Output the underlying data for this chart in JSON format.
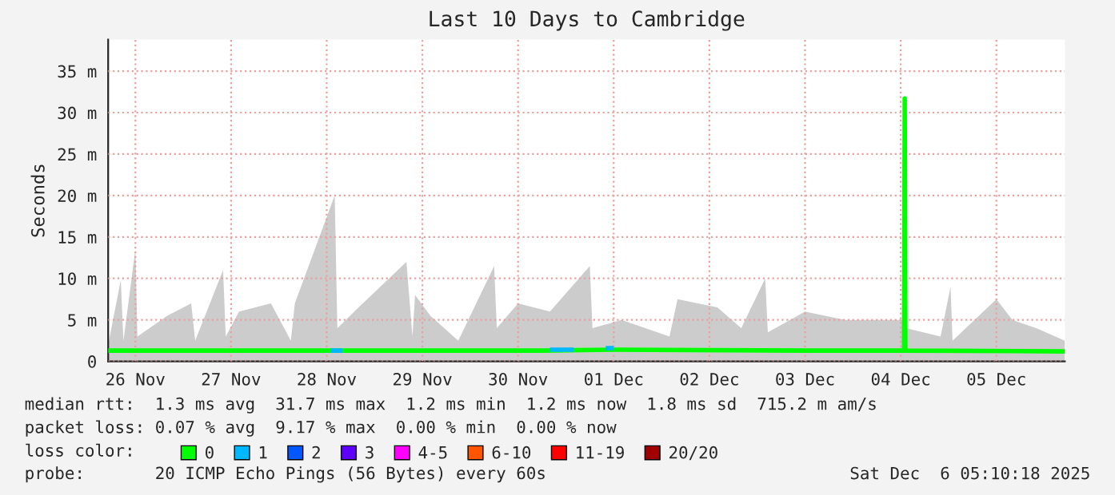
{
  "chart_data": {
    "type": "line",
    "title": "Last 10 Days to Cambridge",
    "ylabel": "Seconds",
    "xlim": [
      "2025-11-26T05:10",
      "2025-12-06T05:10"
    ],
    "xticks": [
      {
        "value": "2025-11-26T12:00",
        "label": "26 Nov"
      },
      {
        "value": "2025-11-27T12:00",
        "label": "27 Nov"
      },
      {
        "value": "2025-11-28T12:00",
        "label": "28 Nov"
      },
      {
        "value": "2025-11-29T12:00",
        "label": "29 Nov"
      },
      {
        "value": "2025-11-30T12:00",
        "label": "30 Nov"
      },
      {
        "value": "2025-12-01T12:00",
        "label": "01 Dec"
      },
      {
        "value": "2025-12-02T12:00",
        "label": "02 Dec"
      },
      {
        "value": "2025-12-03T12:00",
        "label": "03 Dec"
      },
      {
        "value": "2025-12-04T12:00",
        "label": "04 Dec"
      },
      {
        "value": "2025-12-05T12:00",
        "label": "05 Dec"
      }
    ],
    "ylim": [
      0,
      38.8
    ],
    "yticks": [
      {
        "value": 0,
        "label": "0"
      },
      {
        "value": 5,
        "label": "5 m"
      },
      {
        "value": 10,
        "label": "10 m"
      },
      {
        "value": 15,
        "label": "15 m"
      },
      {
        "value": 20,
        "label": "20 m"
      },
      {
        "value": 25,
        "label": "25 m"
      },
      {
        "value": 30,
        "label": "30 m"
      },
      {
        "value": 35,
        "label": "35 m"
      }
    ],
    "grid": true,
    "legend": "bottom",
    "legend_title": "loss color:",
    "series": [
      {
        "type": "area",
        "color": "#cccccc",
        "x": [
          "2025-11-26T05:10",
          "2025-11-26T08:20",
          "2025-11-26T09:00",
          "2025-11-26T12:00",
          "2025-11-26T12:30",
          "2025-11-26T20:00",
          "2025-11-27T02:00",
          "2025-11-27T03:00",
          "2025-11-27T10:00",
          "2025-11-27T10:40",
          "2025-11-27T14:00",
          "2025-11-27T22:00",
          "2025-11-28T03:00",
          "2025-11-28T04:00",
          "2025-11-28T14:00",
          "2025-11-28T14:40",
          "2025-11-28T20:00",
          "2025-11-29T08:00",
          "2025-11-29T09:30",
          "2025-11-29T10:10",
          "2025-11-29T14:00",
          "2025-11-29T21:00",
          "2025-11-30T06:00",
          "2025-11-30T06:40",
          "2025-11-30T12:00",
          "2025-11-30T20:00",
          "2025-12-01T06:00",
          "2025-12-01T06:40",
          "2025-12-01T14:00",
          "2025-12-02T02:00",
          "2025-12-02T04:00",
          "2025-12-02T14:00",
          "2025-12-02T20:00",
          "2025-12-03T02:00",
          "2025-12-03T02:40",
          "2025-12-03T12:00",
          "2025-12-03T22:00",
          "2025-12-04T12:40",
          "2025-12-04T13:00",
          "2025-12-04T13:20",
          "2025-12-04T22:00",
          "2025-12-05T00:30",
          "2025-12-05T01:00",
          "2025-12-05T12:00",
          "2025-12-05T16:00",
          "2025-12-05T22:00",
          "2025-12-06T05:10"
        ],
        "values": [
          2.0,
          9.8,
          2.5,
          13.5,
          3.0,
          5.5,
          7.0,
          2.5,
          11.0,
          3.0,
          6.0,
          7.0,
          2.5,
          7.0,
          20.0,
          4.0,
          6.5,
          12.0,
          3.0,
          8.0,
          5.5,
          2.5,
          11.5,
          4.0,
          7.0,
          6.0,
          11.5,
          4.0,
          5.0,
          3.0,
          7.5,
          6.5,
          4.0,
          10.0,
          3.5,
          6.0,
          5.0,
          5.0,
          33.0,
          4.0,
          3.0,
          9.0,
          2.5,
          7.5,
          5.0,
          4.0,
          2.5
        ]
      },
      {
        "name": "0",
        "color": "#00ff00",
        "x": [
          "2025-11-26T05:10",
          "2025-11-28T12:00",
          "2025-11-30T18:00",
          "2025-12-01T12:00",
          "2025-12-03T12:00",
          "2025-12-04T12:50",
          "2025-12-04T13:00",
          "2025-12-04T13:10",
          "2025-12-06T05:10"
        ],
        "values": [
          1.3,
          1.3,
          1.3,
          1.4,
          1.3,
          1.3,
          31.7,
          1.3,
          1.2
        ]
      },
      {
        "name": "1",
        "color": "#00b8ff",
        "x": [
          "2025-11-28T13:00",
          "2025-11-28T16:00",
          null,
          "2025-11-30T20:00",
          "2025-12-01T02:00",
          null,
          "2025-12-01T10:00",
          "2025-12-01T12:00"
        ],
        "values": [
          1.3,
          1.3,
          null,
          1.4,
          1.4,
          null,
          1.6,
          1.6
        ]
      },
      {
        "name": "2",
        "color": "#0059ff"
      },
      {
        "name": "3",
        "color": "#5e00ff"
      },
      {
        "name": "4-5",
        "color": "#ff00ff"
      },
      {
        "name": "6-10",
        "color": "#ff5500"
      },
      {
        "name": "11-19",
        "color": "#ff0000"
      },
      {
        "name": "20/20",
        "color": "#a10000"
      }
    ],
    "annotations": [
      "median rtt:  1.3 ms avg  31.7 ms max  1.2 ms min  1.2 ms now  1.8 ms sd  715.2 m am/s",
      "packet loss: 0.07 % avg  9.17 % max  0.00 % min  0.00 % now",
      "probe:       20 ICMP Echo Pings (56 Bytes) every 60s",
      "Sat Dec  6 05:10:18 2025"
    ]
  }
}
